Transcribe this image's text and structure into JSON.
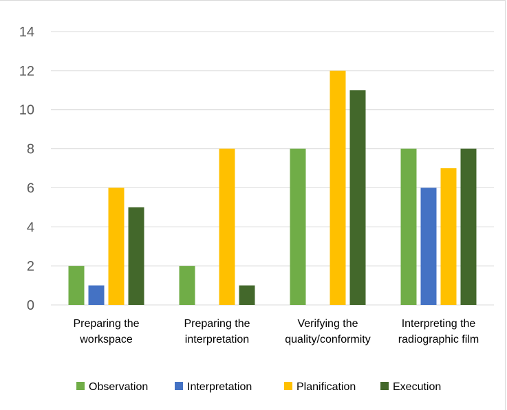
{
  "chart_data": {
    "type": "bar",
    "categories": [
      [
        "Preparing the",
        "workspace"
      ],
      [
        "Preparing the",
        "interpretation"
      ],
      [
        "Verifying the",
        "quality/conformity"
      ],
      [
        "Interpreting the",
        "radiographic film"
      ]
    ],
    "series": [
      {
        "name": "Observation",
        "color": "#70ad47",
        "values": [
          2,
          2,
          8,
          8
        ]
      },
      {
        "name": "Interpretation",
        "color": "#4472c4",
        "values": [
          1,
          0,
          0,
          6
        ]
      },
      {
        "name": "Planification",
        "color": "#ffc000",
        "values": [
          6,
          8,
          12,
          7
        ]
      },
      {
        "name": "Execution",
        "color": "#43682b",
        "values": [
          5,
          1,
          11,
          8
        ]
      }
    ],
    "yticks": [
      0,
      2,
      4,
      6,
      8,
      10,
      12,
      14
    ],
    "ylim": [
      0,
      14
    ],
    "grid": true,
    "legend_position": "bottom"
  }
}
